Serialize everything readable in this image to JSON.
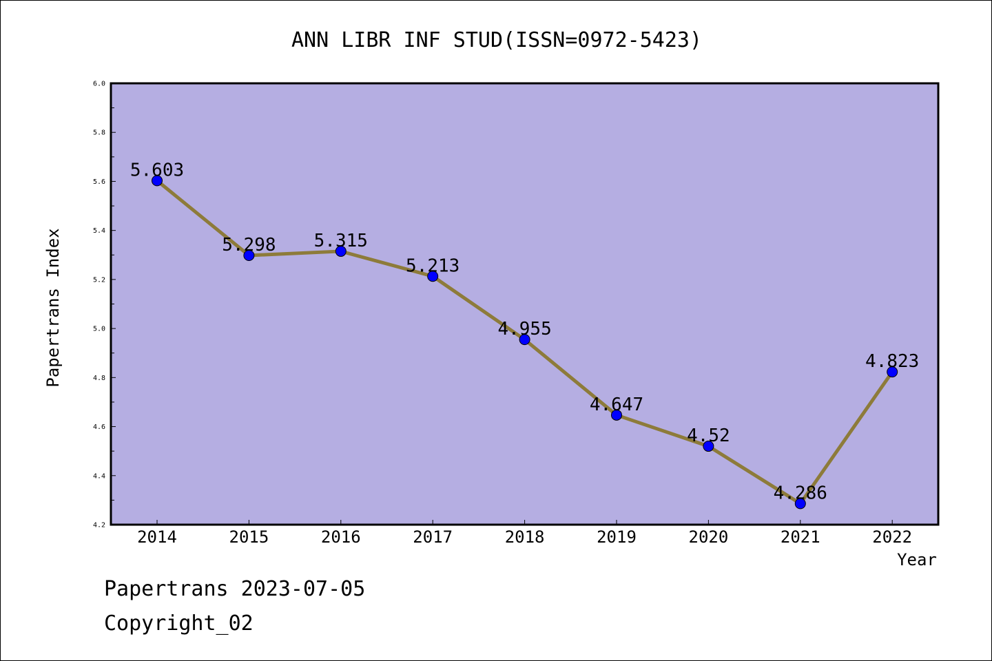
{
  "chart_data": {
    "type": "line",
    "title": "ANN LIBR INF STUD(ISSN=0972-5423)",
    "xlabel": "Year",
    "ylabel": "Papertrans Index",
    "categories": [
      "2014",
      "2015",
      "2016",
      "2017",
      "2018",
      "2019",
      "2020",
      "2021",
      "2022"
    ],
    "values": [
      5.603,
      5.298,
      5.315,
      5.213,
      4.955,
      4.647,
      4.52,
      4.286,
      4.823
    ],
    "data_labels": [
      "5.603",
      "5.298",
      "5.315",
      "5.213",
      "4.955",
      "4.647",
      "4.52",
      "4.286",
      "4.823"
    ],
    "ylim": [
      4.2,
      6.0
    ],
    "yticks": [
      "4.2",
      "4.4",
      "4.6",
      "4.8",
      "5.0",
      "5.2",
      "5.4",
      "5.6",
      "5.8",
      "6.0"
    ],
    "grid": false,
    "colors": {
      "plot_background": "#b5aee2",
      "line": "#8d7b3a",
      "marker": "#0000ff"
    }
  },
  "footer": {
    "line1": "Papertrans 2023-07-05",
    "line2": "Copyright_02"
  }
}
